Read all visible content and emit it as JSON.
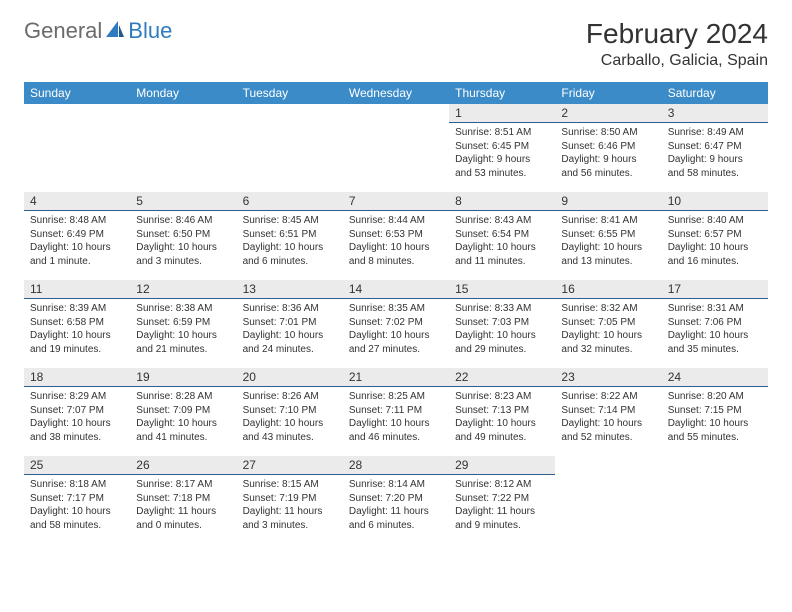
{
  "logo": {
    "general": "General",
    "blue": "Blue",
    "sail_color": "#2f7bbf",
    "general_color": "#6b6b6b"
  },
  "title": "February 2024",
  "location": "Carballo, Galicia, Spain",
  "header_bg": "#3b8bc8",
  "header_text_color": "#ffffff",
  "daynum_bg": "#ebebeb",
  "daynum_border": "#2f5f8f",
  "text_color": "#333333",
  "day_headers": [
    "Sunday",
    "Monday",
    "Tuesday",
    "Wednesday",
    "Thursday",
    "Friday",
    "Saturday"
  ],
  "weeks": [
    [
      null,
      null,
      null,
      null,
      {
        "n": "1",
        "sr": "8:51 AM",
        "ss": "6:45 PM",
        "dl": "9 hours and 53 minutes."
      },
      {
        "n": "2",
        "sr": "8:50 AM",
        "ss": "6:46 PM",
        "dl": "9 hours and 56 minutes."
      },
      {
        "n": "3",
        "sr": "8:49 AM",
        "ss": "6:47 PM",
        "dl": "9 hours and 58 minutes."
      }
    ],
    [
      {
        "n": "4",
        "sr": "8:48 AM",
        "ss": "6:49 PM",
        "dl": "10 hours and 1 minute."
      },
      {
        "n": "5",
        "sr": "8:46 AM",
        "ss": "6:50 PM",
        "dl": "10 hours and 3 minutes."
      },
      {
        "n": "6",
        "sr": "8:45 AM",
        "ss": "6:51 PM",
        "dl": "10 hours and 6 minutes."
      },
      {
        "n": "7",
        "sr": "8:44 AM",
        "ss": "6:53 PM",
        "dl": "10 hours and 8 minutes."
      },
      {
        "n": "8",
        "sr": "8:43 AM",
        "ss": "6:54 PM",
        "dl": "10 hours and 11 minutes."
      },
      {
        "n": "9",
        "sr": "8:41 AM",
        "ss": "6:55 PM",
        "dl": "10 hours and 13 minutes."
      },
      {
        "n": "10",
        "sr": "8:40 AM",
        "ss": "6:57 PM",
        "dl": "10 hours and 16 minutes."
      }
    ],
    [
      {
        "n": "11",
        "sr": "8:39 AM",
        "ss": "6:58 PM",
        "dl": "10 hours and 19 minutes."
      },
      {
        "n": "12",
        "sr": "8:38 AM",
        "ss": "6:59 PM",
        "dl": "10 hours and 21 minutes."
      },
      {
        "n": "13",
        "sr": "8:36 AM",
        "ss": "7:01 PM",
        "dl": "10 hours and 24 minutes."
      },
      {
        "n": "14",
        "sr": "8:35 AM",
        "ss": "7:02 PM",
        "dl": "10 hours and 27 minutes."
      },
      {
        "n": "15",
        "sr": "8:33 AM",
        "ss": "7:03 PM",
        "dl": "10 hours and 29 minutes."
      },
      {
        "n": "16",
        "sr": "8:32 AM",
        "ss": "7:05 PM",
        "dl": "10 hours and 32 minutes."
      },
      {
        "n": "17",
        "sr": "8:31 AM",
        "ss": "7:06 PM",
        "dl": "10 hours and 35 minutes."
      }
    ],
    [
      {
        "n": "18",
        "sr": "8:29 AM",
        "ss": "7:07 PM",
        "dl": "10 hours and 38 minutes."
      },
      {
        "n": "19",
        "sr": "8:28 AM",
        "ss": "7:09 PM",
        "dl": "10 hours and 41 minutes."
      },
      {
        "n": "20",
        "sr": "8:26 AM",
        "ss": "7:10 PM",
        "dl": "10 hours and 43 minutes."
      },
      {
        "n": "21",
        "sr": "8:25 AM",
        "ss": "7:11 PM",
        "dl": "10 hours and 46 minutes."
      },
      {
        "n": "22",
        "sr": "8:23 AM",
        "ss": "7:13 PM",
        "dl": "10 hours and 49 minutes."
      },
      {
        "n": "23",
        "sr": "8:22 AM",
        "ss": "7:14 PM",
        "dl": "10 hours and 52 minutes."
      },
      {
        "n": "24",
        "sr": "8:20 AM",
        "ss": "7:15 PM",
        "dl": "10 hours and 55 minutes."
      }
    ],
    [
      {
        "n": "25",
        "sr": "8:18 AM",
        "ss": "7:17 PM",
        "dl": "10 hours and 58 minutes."
      },
      {
        "n": "26",
        "sr": "8:17 AM",
        "ss": "7:18 PM",
        "dl": "11 hours and 0 minutes."
      },
      {
        "n": "27",
        "sr": "8:15 AM",
        "ss": "7:19 PM",
        "dl": "11 hours and 3 minutes."
      },
      {
        "n": "28",
        "sr": "8:14 AM",
        "ss": "7:20 PM",
        "dl": "11 hours and 6 minutes."
      },
      {
        "n": "29",
        "sr": "8:12 AM",
        "ss": "7:22 PM",
        "dl": "11 hours and 9 minutes."
      },
      null,
      null
    ]
  ],
  "labels": {
    "sunrise": "Sunrise:",
    "sunset": "Sunset:",
    "daylight": "Daylight:"
  }
}
